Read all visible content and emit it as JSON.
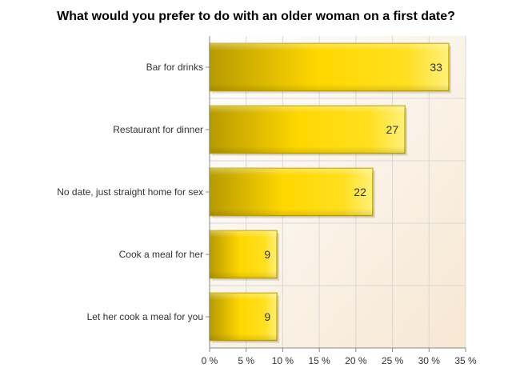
{
  "chart_data": {
    "type": "bar",
    "orientation": "horizontal",
    "title": "What would you prefer to do with an older woman on a first date?",
    "categories": [
      "Bar for drinks",
      "Restaurant for dinner",
      "No date, just straight home for sex",
      "Cook a meal for her",
      "Let her cook a meal for you"
    ],
    "values": [
      32.7,
      26.7,
      22.3,
      9.2,
      9.2
    ],
    "data_labels": [
      "33",
      "27",
      "22",
      "9",
      "9"
    ],
    "xlabel": "",
    "ylabel": "",
    "xlim": [
      0,
      35
    ],
    "xticks": [
      0,
      5,
      10,
      15,
      20,
      25,
      30,
      35
    ],
    "xtick_labels": [
      "0 %",
      "5 %",
      "10 %",
      "15 %",
      "20 %",
      "25 %",
      "30 %",
      "35 %"
    ],
    "grid": true,
    "legend": "none",
    "colors": {
      "bar_fill": "#ffd700",
      "bar_dark": "#b79a00",
      "bar_light": "#fff07a",
      "bar_border": "#c8a800",
      "plot_bg_top": "#ffffff",
      "plot_bg_bottom": "#f6e7d2",
      "grid": "#d8d8d8",
      "axis": "#888888"
    }
  }
}
